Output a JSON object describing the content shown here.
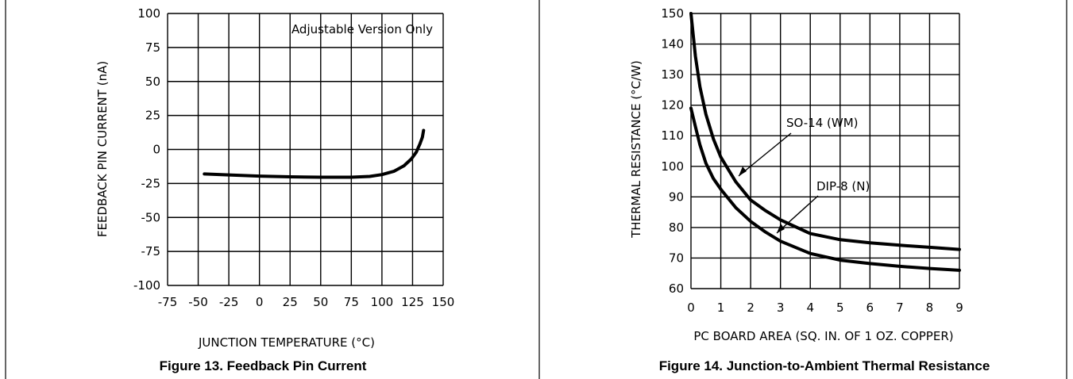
{
  "chart_data": [
    {
      "type": "line",
      "title": "",
      "caption": "Figure 13. Feedback Pin Current",
      "xlabel": "JUNCTION TEMPERATURE (°C)",
      "ylabel": "FEEDBACK PIN CURRENT (nA)",
      "xlim": [
        -75,
        150
      ],
      "ylim": [
        -100,
        100
      ],
      "xticks": [
        "-75",
        "-50",
        "-25",
        "0",
        "25",
        "50",
        "75",
        "100",
        "125",
        "150"
      ],
      "yticks": [
        "100",
        "75",
        "50",
        "25",
        "0",
        "-25",
        "-50",
        "-75",
        "-100"
      ],
      "grid": true,
      "annotation": "Adjustable Version Only",
      "series": [
        {
          "x": [
            -45,
            -25,
            0,
            25,
            50,
            75,
            90,
            100,
            110,
            118,
            124,
            128,
            131,
            133,
            134
          ],
          "y": [
            -18,
            -18.7,
            -19.6,
            -20.1,
            -20.4,
            -20.4,
            -19.8,
            -18.5,
            -16,
            -12,
            -7,
            -2,
            4,
            9,
            14
          ]
        }
      ]
    },
    {
      "type": "line",
      "title": "",
      "caption": "Figure 14. Junction-to-Ambient Thermal Resistance",
      "xlabel": "PC BOARD AREA (SQ. IN. OF 1 OZ. COPPER)",
      "ylabel": "THERMAL RESISTANCE (°C/W)",
      "xlim": [
        0,
        9
      ],
      "ylim": [
        60,
        150
      ],
      "xticks": [
        "0",
        "1",
        "2",
        "3",
        "4",
        "5",
        "6",
        "7",
        "8",
        "9"
      ],
      "yticks": [
        "150",
        "140",
        "130",
        "120",
        "110",
        "100",
        "90",
        "80",
        "70",
        "60"
      ],
      "grid": true,
      "series": [
        {
          "name": "SO-14 (WM)",
          "x": [
            0,
            0.15,
            0.3,
            0.5,
            0.75,
            1,
            1.5,
            2,
            2.5,
            3,
            4,
            5,
            6,
            7,
            8,
            9
          ],
          "y": [
            150,
            136,
            126,
            117,
            109,
            103,
            95,
            89,
            85.5,
            82.5,
            78,
            76,
            75,
            74.2,
            73.5,
            72.8
          ]
        },
        {
          "name": "DIP-8 (N)",
          "x": [
            0,
            0.15,
            0.3,
            0.5,
            0.75,
            1,
            1.5,
            2,
            2.5,
            3,
            4,
            5,
            6,
            7,
            8,
            9
          ],
          "y": [
            119,
            113,
            107,
            101,
            96,
            92.5,
            86.5,
            82,
            78.5,
            75.5,
            71.5,
            69.3,
            68.2,
            67.3,
            66.6,
            66
          ]
        }
      ]
    }
  ]
}
